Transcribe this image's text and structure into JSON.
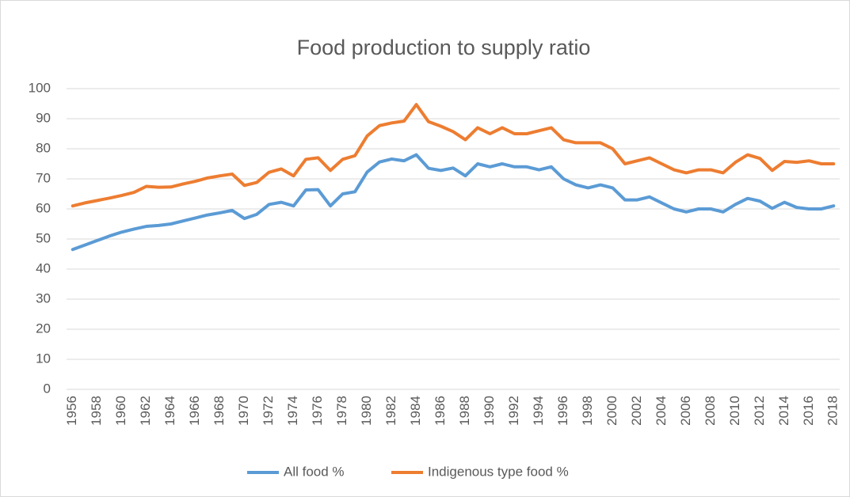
{
  "chart_data": {
    "type": "line",
    "title": "Food production to supply ratio",
    "categories": [
      "1956",
      null,
      "1958",
      null,
      "1960",
      null,
      "1962",
      null,
      "1964",
      null,
      "1966",
      null,
      "1968",
      null,
      "1970",
      null,
      "1972",
      null,
      "1974",
      null,
      "1976",
      null,
      "1978",
      null,
      "1980",
      null,
      "1982",
      null,
      "1984",
      null,
      "1986",
      null,
      "1988",
      null,
      "1990",
      null,
      "1992",
      null,
      "1994",
      null,
      "1996",
      null,
      "1998",
      null,
      "2000",
      null,
      "2002",
      null,
      "2004",
      null,
      "2006",
      null,
      "2008",
      null,
      "2010",
      null,
      "2012",
      null,
      "2014",
      null,
      "2016",
      null,
      "2018"
    ],
    "series": [
      {
        "name": "All food %",
        "color": "#5b9bd5",
        "values": [
          46.5,
          48,
          49.5,
          51,
          52.3,
          53.3,
          54.2,
          54.5,
          55,
          56,
          57,
          58,
          58.7,
          59.5,
          56.8,
          58.2,
          61.5,
          62.2,
          61,
          66.3,
          66.4,
          61,
          65,
          65.7,
          72.3,
          75.6,
          76.6,
          76,
          78,
          73.5,
          72.8,
          73.6,
          71,
          75,
          74,
          75,
          74,
          74,
          73,
          74,
          70,
          68,
          67,
          68,
          67,
          63,
          63,
          64,
          62,
          60,
          59,
          60,
          60,
          59,
          61.5,
          63.5,
          62.6,
          60.2,
          62.2,
          60.5,
          60,
          60,
          61
        ]
      },
      {
        "name": "Indigenous type food %",
        "color": "#ed7d31",
        "values": [
          61,
          62,
          62.8,
          63.6,
          64.5,
          65.5,
          67.5,
          67.2,
          67.3,
          68.3,
          69.2,
          70.3,
          71,
          71.6,
          67.8,
          68.8,
          72.2,
          73.3,
          71,
          76.5,
          77,
          72.8,
          76.5,
          77.7,
          84.3,
          87.7,
          88.6,
          89.2,
          94.7,
          89,
          87.5,
          85.7,
          83,
          87,
          85,
          87,
          85,
          85,
          86,
          87,
          83,
          82,
          82,
          82,
          80,
          75,
          76,
          77,
          75,
          73,
          72,
          73,
          73,
          72,
          75.5,
          78,
          76.8,
          72.8,
          75.8,
          75.5,
          76,
          75,
          75
        ]
      }
    ],
    "ylim": [
      0,
      100
    ],
    "yticks": [
      0,
      10,
      20,
      30,
      40,
      50,
      60,
      70,
      80,
      90,
      100
    ],
    "grid": true,
    "legend": "bottom"
  }
}
